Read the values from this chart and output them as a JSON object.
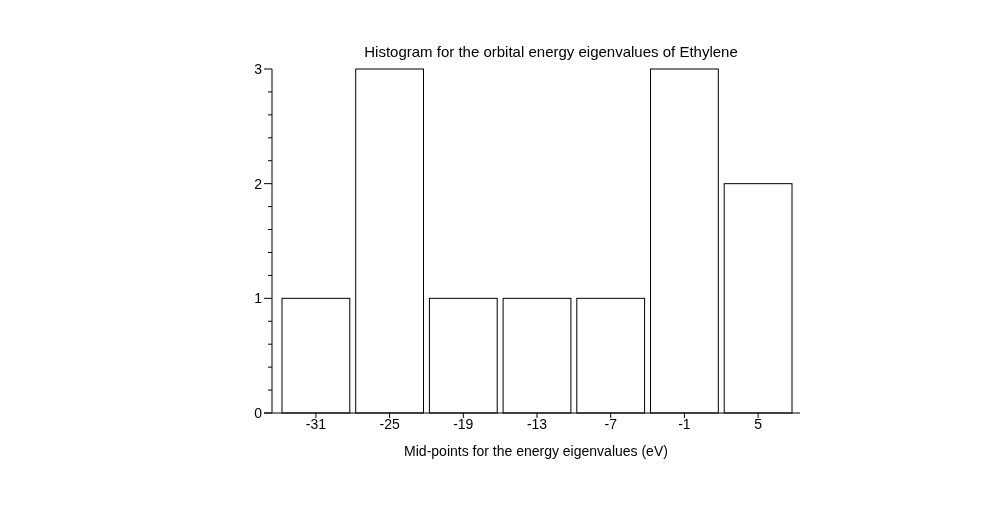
{
  "chart_data": {
    "type": "bar",
    "title": "Histogram for the orbital energy eigenvalues of Ethylene",
    "xlabel": "Mid-points for the energy eigenvalues (eV)",
    "categories": [
      "-31",
      "-25",
      "-19",
      "-13",
      "-7",
      "-1",
      "5"
    ],
    "values": [
      1,
      3,
      1,
      1,
      1,
      3,
      2
    ],
    "color": "#ffffff",
    "ylim": [
      0,
      3
    ],
    "yticks": [
      0,
      {
        "value": 0.2,
        "label": null
      },
      {
        "value": 0.4,
        "label": null
      },
      {
        "value": 0.6,
        "label": null
      },
      {
        "value": 0.8,
        "label": null
      },
      1,
      {
        "value": 1.2,
        "label": null
      },
      {
        "value": 1.4,
        "label": null
      },
      {
        "value": 1.6,
        "label": null
      },
      {
        "value": 1.8,
        "label": null
      },
      2,
      {
        "value": 2.2,
        "label": null
      },
      {
        "value": 2.4,
        "label": null
      },
      {
        "value": 2.6,
        "label": null
      },
      {
        "value": 2.8,
        "label": null
      },
      3
    ],
    "grid": false
  }
}
